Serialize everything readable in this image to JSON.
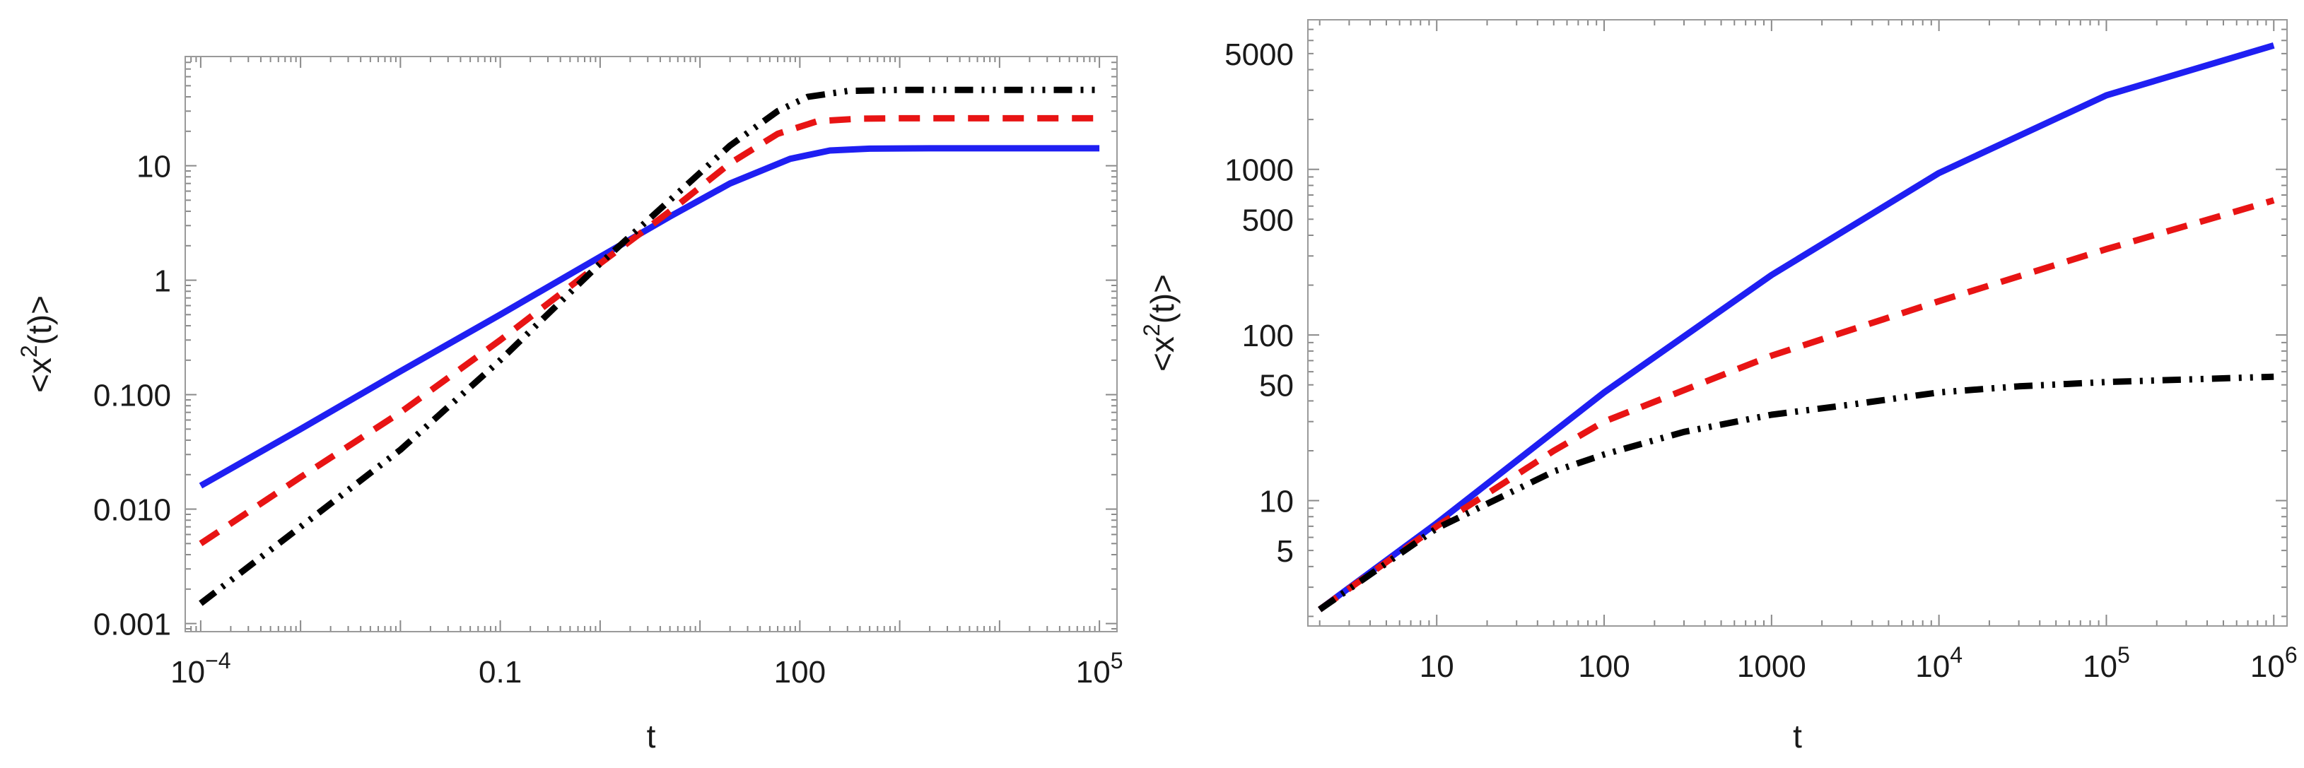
{
  "figure": {
    "panels": 2
  },
  "chart_data": [
    {
      "type": "line",
      "scale": {
        "x": "log",
        "y": "log"
      },
      "xlim": [
        7e-05,
        150000
      ],
      "ylim": [
        0.00085,
        90
      ],
      "xlabel": "t",
      "ylabel": "<x2(t)>",
      "ylabel_parts": {
        "pre": "<x",
        "sup": "2",
        "post": "(t)>"
      },
      "x_ticks": [
        {
          "value": 0.0001,
          "base": "10",
          "exp": "−4"
        },
        {
          "value": 0.1,
          "label": "0.1"
        },
        {
          "value": 100,
          "label": "100"
        },
        {
          "value": 100000,
          "base": "10",
          "exp": "5"
        }
      ],
      "y_ticks": [
        {
          "value": 0.001,
          "label": "0.001"
        },
        {
          "value": 0.01,
          "label": "0.010"
        },
        {
          "value": 0.1,
          "label": "0.100"
        },
        {
          "value": 1,
          "label": "1"
        },
        {
          "value": 10,
          "label": "10"
        }
      ],
      "series": [
        {
          "name": "blue-solid",
          "color": "#1f1ff2",
          "style": "solid",
          "points": [
            [
              0.0001,
              0.016
            ],
            [
              0.001,
              0.05
            ],
            [
              0.01,
              0.16
            ],
            [
              0.1,
              0.5
            ],
            [
              1,
              1.6
            ],
            [
              5,
              3.6
            ],
            [
              20,
              7.0
            ],
            [
              80,
              11.5
            ],
            [
              200,
              13.6
            ],
            [
              500,
              14.1
            ],
            [
              2000,
              14.2
            ],
            [
              100000,
              14.2
            ]
          ]
        },
        {
          "name": "red-dashed",
          "color": "#e81414",
          "style": "dashed",
          "points": [
            [
              0.0001,
              0.005
            ],
            [
              0.001,
              0.019
            ],
            [
              0.01,
              0.07
            ],
            [
              0.1,
              0.3
            ],
            [
              1,
              1.4
            ],
            [
              5,
              4.0
            ],
            [
              20,
              10.5
            ],
            [
              60,
              19.0
            ],
            [
              150,
              24.5
            ],
            [
              400,
              25.8
            ],
            [
              1000,
              26.0
            ],
            [
              100000,
              26.0
            ]
          ]
        },
        {
          "name": "black-dash-dot-dot",
          "color": "#000000",
          "style": "dash-dot-dot",
          "points": [
            [
              0.0001,
              0.0015
            ],
            [
              0.001,
              0.007
            ],
            [
              0.01,
              0.033
            ],
            [
              0.1,
              0.2
            ],
            [
              1,
              1.4
            ],
            [
              5,
              5.0
            ],
            [
              20,
              15.0
            ],
            [
              60,
              30.0
            ],
            [
              120,
              40.0
            ],
            [
              300,
              45.0
            ],
            [
              1000,
              46.0
            ],
            [
              100000,
              46.0
            ]
          ]
        }
      ]
    },
    {
      "type": "line",
      "scale": {
        "x": "log",
        "y": "log"
      },
      "xlim": [
        1.7,
        1200000
      ],
      "ylim": [
        1.75,
        8000
      ],
      "xlabel": "t",
      "ylabel": "<x2(t)>",
      "ylabel_parts": {
        "pre": "<x",
        "sup": "2",
        "post": "(t)>"
      },
      "x_ticks": [
        {
          "value": 10,
          "label": "10"
        },
        {
          "value": 100,
          "label": "100"
        },
        {
          "value": 1000,
          "label": "1000"
        },
        {
          "value": 10000,
          "base": "10",
          "exp": "4"
        },
        {
          "value": 100000,
          "base": "10",
          "exp": "5"
        },
        {
          "value": 1000000,
          "base": "10",
          "exp": "6"
        }
      ],
      "y_ticks": [
        {
          "value": 5,
          "label": "5"
        },
        {
          "value": 10,
          "label": "10"
        },
        {
          "value": 50,
          "label": "50"
        },
        {
          "value": 100,
          "label": "100"
        },
        {
          "value": 500,
          "label": "500"
        },
        {
          "value": 1000,
          "label": "1000"
        },
        {
          "value": 5000,
          "label": "5000"
        }
      ],
      "series": [
        {
          "name": "blue-solid",
          "color": "#1f1ff2",
          "style": "solid",
          "points": [
            [
              2,
              2.2
            ],
            [
              10,
              7.3
            ],
            [
              100,
              45
            ],
            [
              1000,
              230
            ],
            [
              10000,
              950
            ],
            [
              100000,
              2800
            ],
            [
              1000000,
              5600
            ]
          ]
        },
        {
          "name": "red-dashed",
          "color": "#e81414",
          "style": "dashed",
          "points": [
            [
              2,
              2.2
            ],
            [
              10,
              7.0
            ],
            [
              50,
              20
            ],
            [
              100,
              30
            ],
            [
              1000,
              75
            ],
            [
              10000,
              160
            ],
            [
              100000,
              330
            ],
            [
              1000000,
              650
            ]
          ]
        },
        {
          "name": "black-dash-dot-dot",
          "color": "#000000",
          "style": "dash-dot-dot",
          "points": [
            [
              2,
              2.2
            ],
            [
              10,
              6.8
            ],
            [
              50,
              15
            ],
            [
              100,
              19
            ],
            [
              300,
              26
            ],
            [
              1000,
              33
            ],
            [
              3000,
              38
            ],
            [
              10000,
              45
            ],
            [
              30000,
              49
            ],
            [
              100000,
              52
            ],
            [
              1000000,
              56
            ]
          ]
        }
      ]
    }
  ]
}
